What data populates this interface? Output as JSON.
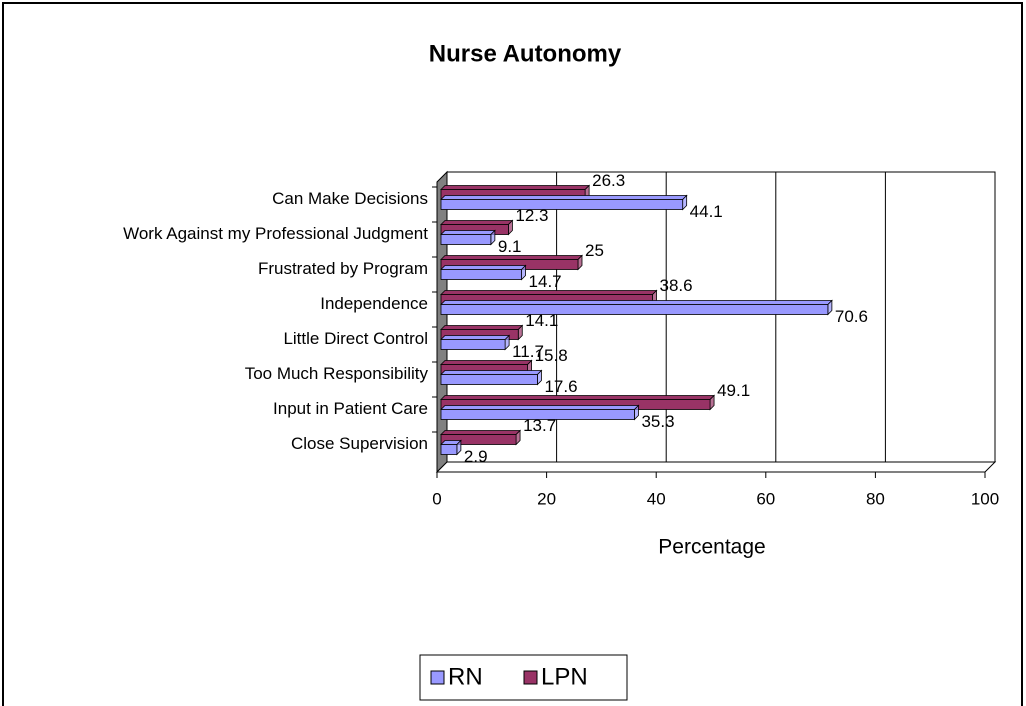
{
  "chart_data": {
    "type": "bar",
    "orientation": "horizontal",
    "title": "Nurse Autonomy",
    "categories": [
      "Can Make Decisions",
      "Work Against my Professional Judgment",
      "Frustrated by Program",
      "Independence",
      "Little Direct Control",
      "Too Much Responsibility",
      "Input in Patient Care",
      "Close Supervision"
    ],
    "series": [
      {
        "name": "RN",
        "color": "#9999ff",
        "values": [
          44.1,
          9.1,
          14.7,
          70.6,
          11.7,
          17.6,
          35.3,
          2.9
        ]
      },
      {
        "name": "LPN",
        "color": "#993366",
        "values": [
          26.3,
          12.3,
          25,
          38.6,
          14.1,
          15.8,
          49.1,
          13.7
        ]
      }
    ],
    "xlabel": "Percentage",
    "xlim": [
      0,
      100
    ],
    "xticks": [
      0,
      20,
      40,
      60,
      80,
      100
    ],
    "grid": true,
    "legend": "bottom"
  }
}
